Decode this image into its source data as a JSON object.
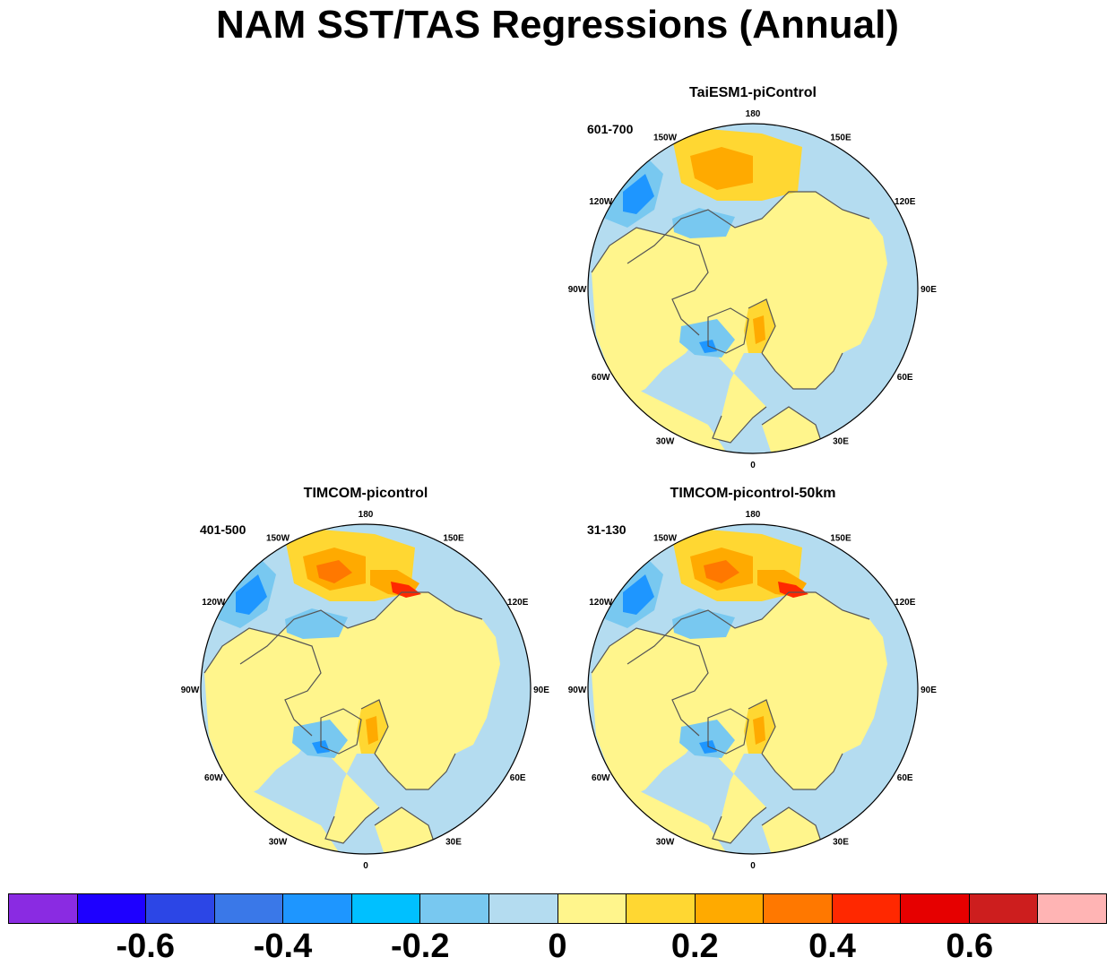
{
  "title": "NAM SST/TAS Regressions (Annual)",
  "panels": [
    {
      "id": "taiesm1",
      "title": "TaiESM1-piControl",
      "period": "601-700"
    },
    {
      "id": "timcom",
      "title": "TIMCOM-picontrol",
      "period": "401-500"
    },
    {
      "id": "timcom50",
      "title": "TIMCOM-picontrol-50km",
      "period": "31-130"
    }
  ],
  "lon_labels": [
    "180",
    "150E",
    "120E",
    "90E",
    "60E",
    "30E",
    "0",
    "30W",
    "60W",
    "90W",
    "120W",
    "150W"
  ],
  "colorbar": {
    "colors": [
      "#8a2be2",
      "#1e00ff",
      "#2c46e6",
      "#3a78e8",
      "#1e96ff",
      "#00c0ff",
      "#78c8f0",
      "#b4dcf0",
      "#fff58c",
      "#ffd732",
      "#ffaa00",
      "#ff7800",
      "#ff2800",
      "#e60000",
      "#cd1e1e",
      "#ffb4b4"
    ],
    "labels": [
      "-0.6",
      "-0.4",
      "-0.2",
      "0",
      "0.2",
      "0.4",
      "0.6"
    ]
  }
}
